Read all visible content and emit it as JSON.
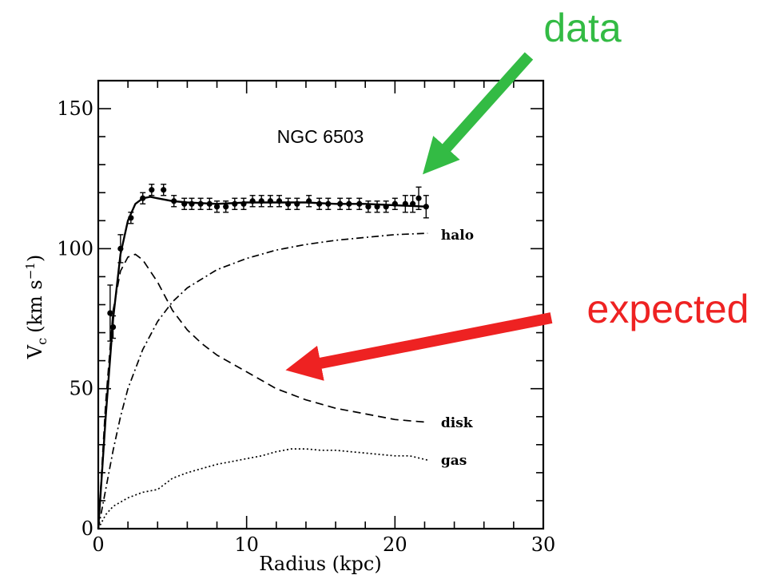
{
  "chart_data": {
    "type": "line",
    "title": "NGC 6503",
    "xlabel": "Radius (kpc)",
    "ylabel": "V",
    "ylabel_sub": "c",
    "ylabel_units": "(km s",
    "ylabel_units_sup": "−1",
    "ylabel_units_close": ")",
    "xlim": [
      0,
      30
    ],
    "ylim": [
      0,
      160
    ],
    "xticks": [
      0,
      10,
      20,
      30
    ],
    "yticks": [
      0,
      50,
      100,
      150
    ],
    "xtick_labels": [
      "0",
      "10",
      "20",
      "30"
    ],
    "ytick_labels": [
      "0",
      "50",
      "100",
      "150"
    ],
    "grid": false,
    "observed": {
      "x": [
        0.8,
        1.0,
        1.5,
        2.2,
        3.0,
        3.6,
        4.4,
        5.1,
        5.8,
        6.3,
        6.9,
        7.5,
        8.0,
        8.6,
        9.2,
        9.8,
        10.4,
        11.0,
        11.6,
        12.2,
        12.8,
        13.4,
        14.2,
        14.9,
        15.5,
        16.3,
        16.9,
        17.6,
        18.2,
        18.8,
        19.4,
        20.0,
        20.7,
        21.2,
        21.6,
        22.1
      ],
      "y": [
        77,
        72,
        100,
        111,
        118,
        121,
        121,
        117,
        116,
        116,
        116,
        116,
        115,
        115,
        116,
        116,
        117,
        117,
        117,
        117,
        116,
        116,
        117,
        116,
        116,
        116,
        116,
        116,
        115,
        115,
        115,
        116,
        116,
        116,
        118,
        115
      ],
      "err": [
        10,
        4,
        5,
        2,
        2,
        2,
        2,
        2,
        2,
        2,
        2,
        2,
        2,
        2,
        2,
        2,
        2,
        2,
        2,
        2,
        2,
        2,
        2,
        2,
        2,
        2,
        2,
        2,
        2,
        2,
        2,
        2,
        3,
        3,
        4,
        4
      ]
    },
    "series": [
      {
        "name": "",
        "style": "solid",
        "x": [
          0,
          0.5,
          1,
          1.5,
          2,
          2.5,
          3,
          3.5,
          4,
          5,
          6,
          8,
          10,
          12,
          14,
          16,
          18,
          20,
          22.2
        ],
        "y": [
          0,
          40,
          75,
          98,
          110,
          116,
          118,
          118.5,
          118,
          117,
          116.5,
          116,
          116.5,
          116.5,
          116.5,
          116,
          116,
          115.5,
          115
        ]
      },
      {
        "name": "halo",
        "style": "dashdot",
        "x": [
          0,
          0.5,
          1,
          1.5,
          2,
          3,
          4,
          5,
          6,
          8,
          10,
          12,
          14,
          16,
          18,
          20,
          22.2
        ],
        "y": [
          0,
          14,
          28,
          40,
          50,
          64,
          74,
          81,
          86,
          92.5,
          96.5,
          99.5,
          101.5,
          103,
          104,
          105,
          105.5
        ]
      },
      {
        "name": "disk",
        "style": "dashed",
        "x": [
          0,
          0.5,
          1,
          1.5,
          2,
          2.5,
          3,
          4,
          5,
          6,
          7,
          8,
          10,
          12,
          14,
          16,
          18,
          20,
          22.2
        ],
        "y": [
          0,
          45,
          78,
          92,
          97,
          98,
          96,
          88,
          78,
          71,
          66,
          62,
          56,
          50,
          46,
          43,
          41,
          39,
          38
        ]
      },
      {
        "name": "gas",
        "style": "dotted",
        "x": [
          0,
          0.5,
          1,
          2,
          3,
          4,
          5,
          6,
          7,
          8,
          9,
          10,
          11,
          12,
          13,
          14,
          15,
          16,
          17,
          18,
          19,
          20,
          21,
          22.2
        ],
        "y": [
          0,
          5,
          8,
          11,
          13,
          14,
          18,
          20,
          21.5,
          23,
          24,
          25,
          26,
          27.5,
          28.5,
          28.5,
          28,
          28,
          27.5,
          27,
          26.5,
          26,
          26,
          24.5
        ]
      }
    ],
    "curve_labels": [
      {
        "text": "halo",
        "x": 23.1,
        "y": 105
      },
      {
        "text": "disk",
        "x": 23.1,
        "y": 38
      },
      {
        "text": "gas",
        "x": 23.1,
        "y": 24.5
      }
    ]
  },
  "annotations": {
    "data_label": "data",
    "data_color": "#33bb44",
    "expected_label": "expected",
    "expected_color": "#ee2222"
  }
}
